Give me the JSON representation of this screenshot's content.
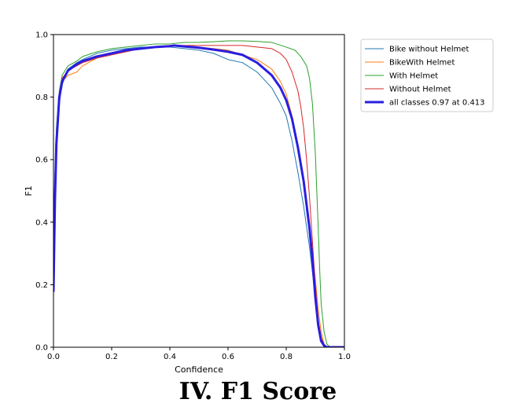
{
  "caption": "IV. F1 Score",
  "chart_data": {
    "type": "line",
    "title": "",
    "xlabel": "Confidence",
    "ylabel": "F1",
    "xlim": [
      0,
      1
    ],
    "ylim": [
      0,
      1
    ],
    "xticks": [
      "0.0",
      "0.2",
      "0.4",
      "0.6",
      "0.8",
      "1.0"
    ],
    "yticks": [
      "0.0",
      "0.2",
      "0.4",
      "0.6",
      "0.8",
      "1.0"
    ],
    "grid": false,
    "legend_position": "outside-right-top",
    "series": [
      {
        "name": "Bike without Helmet",
        "color": "#1f77b4",
        "width": 1,
        "x": [
          0,
          0.005,
          0.01,
          0.02,
          0.03,
          0.05,
          0.08,
          0.1,
          0.15,
          0.2,
          0.25,
          0.3,
          0.35,
          0.4,
          0.45,
          0.5,
          0.55,
          0.6,
          0.65,
          0.7,
          0.72,
          0.75,
          0.78,
          0.8,
          0.82,
          0.84,
          0.86,
          0.88,
          0.89,
          0.9,
          0.91,
          0.92,
          0.93,
          0.94,
          1.0
        ],
        "y": [
          0.16,
          0.45,
          0.62,
          0.78,
          0.84,
          0.89,
          0.91,
          0.92,
          0.94,
          0.95,
          0.955,
          0.96,
          0.96,
          0.96,
          0.955,
          0.95,
          0.94,
          0.92,
          0.91,
          0.88,
          0.86,
          0.83,
          0.78,
          0.74,
          0.66,
          0.56,
          0.45,
          0.32,
          0.24,
          0.16,
          0.08,
          0.03,
          0.01,
          0,
          0
        ]
      },
      {
        "name": "BikeWith Helmet",
        "color": "#ff7f0e",
        "width": 1,
        "x": [
          0,
          0.005,
          0.01,
          0.02,
          0.03,
          0.05,
          0.08,
          0.1,
          0.15,
          0.2,
          0.25,
          0.3,
          0.35,
          0.4,
          0.45,
          0.5,
          0.55,
          0.6,
          0.65,
          0.7,
          0.75,
          0.78,
          0.8,
          0.82,
          0.84,
          0.86,
          0.88,
          0.89,
          0.9,
          0.91,
          0.92,
          0.93,
          0.94,
          1.0
        ],
        "y": [
          0.2,
          0.5,
          0.68,
          0.8,
          0.85,
          0.87,
          0.88,
          0.9,
          0.925,
          0.94,
          0.95,
          0.955,
          0.96,
          0.965,
          0.965,
          0.96,
          0.955,
          0.95,
          0.935,
          0.92,
          0.89,
          0.85,
          0.81,
          0.74,
          0.64,
          0.52,
          0.38,
          0.3,
          0.22,
          0.12,
          0.05,
          0.01,
          0,
          0
        ]
      },
      {
        "name": "With Helmet",
        "color": "#2ca02c",
        "width": 1,
        "x": [
          0,
          0.005,
          0.01,
          0.02,
          0.03,
          0.05,
          0.08,
          0.1,
          0.15,
          0.2,
          0.25,
          0.3,
          0.35,
          0.4,
          0.45,
          0.5,
          0.55,
          0.6,
          0.65,
          0.7,
          0.75,
          0.8,
          0.83,
          0.85,
          0.87,
          0.88,
          0.89,
          0.9,
          0.905,
          0.91,
          0.915,
          0.92,
          0.93,
          0.94,
          0.95,
          1.0
        ],
        "y": [
          0.3,
          0.55,
          0.7,
          0.82,
          0.87,
          0.9,
          0.915,
          0.93,
          0.945,
          0.955,
          0.96,
          0.965,
          0.97,
          0.97,
          0.975,
          0.975,
          0.977,
          0.98,
          0.98,
          0.978,
          0.975,
          0.96,
          0.95,
          0.93,
          0.9,
          0.86,
          0.78,
          0.62,
          0.5,
          0.38,
          0.25,
          0.14,
          0.05,
          0.01,
          0,
          0
        ]
      },
      {
        "name": "Without Helmet",
        "color": "#d62728",
        "width": 1,
        "x": [
          0,
          0.005,
          0.01,
          0.02,
          0.03,
          0.05,
          0.08,
          0.1,
          0.15,
          0.2,
          0.25,
          0.3,
          0.35,
          0.4,
          0.45,
          0.5,
          0.55,
          0.6,
          0.65,
          0.7,
          0.75,
          0.78,
          0.8,
          0.82,
          0.84,
          0.85,
          0.86,
          0.87,
          0.88,
          0.89,
          0.9,
          0.91,
          0.92,
          0.93,
          0.94,
          1.0
        ],
        "y": [
          0.18,
          0.45,
          0.65,
          0.8,
          0.86,
          0.885,
          0.9,
          0.91,
          0.925,
          0.935,
          0.945,
          0.955,
          0.96,
          0.965,
          0.965,
          0.965,
          0.965,
          0.965,
          0.965,
          0.96,
          0.955,
          0.94,
          0.92,
          0.88,
          0.82,
          0.77,
          0.7,
          0.6,
          0.48,
          0.34,
          0.2,
          0.09,
          0.03,
          0.01,
          0,
          0
        ]
      },
      {
        "name": "all classes 0.97 at 0.413",
        "color": "#2a1ee0",
        "width": 3,
        "x": [
          0,
          0.005,
          0.01,
          0.02,
          0.03,
          0.05,
          0.08,
          0.1,
          0.15,
          0.2,
          0.25,
          0.3,
          0.35,
          0.4,
          0.413,
          0.45,
          0.5,
          0.55,
          0.6,
          0.65,
          0.7,
          0.75,
          0.78,
          0.8,
          0.82,
          0.84,
          0.86,
          0.88,
          0.89,
          0.9,
          0.91,
          0.92,
          0.93,
          0.94,
          1.0
        ],
        "y": [
          0.18,
          0.47,
          0.65,
          0.8,
          0.85,
          0.885,
          0.905,
          0.915,
          0.93,
          0.94,
          0.95,
          0.955,
          0.96,
          0.963,
          0.965,
          0.962,
          0.958,
          0.952,
          0.945,
          0.935,
          0.91,
          0.87,
          0.83,
          0.79,
          0.73,
          0.64,
          0.53,
          0.38,
          0.28,
          0.16,
          0.07,
          0.02,
          0.005,
          0,
          0
        ]
      }
    ]
  }
}
